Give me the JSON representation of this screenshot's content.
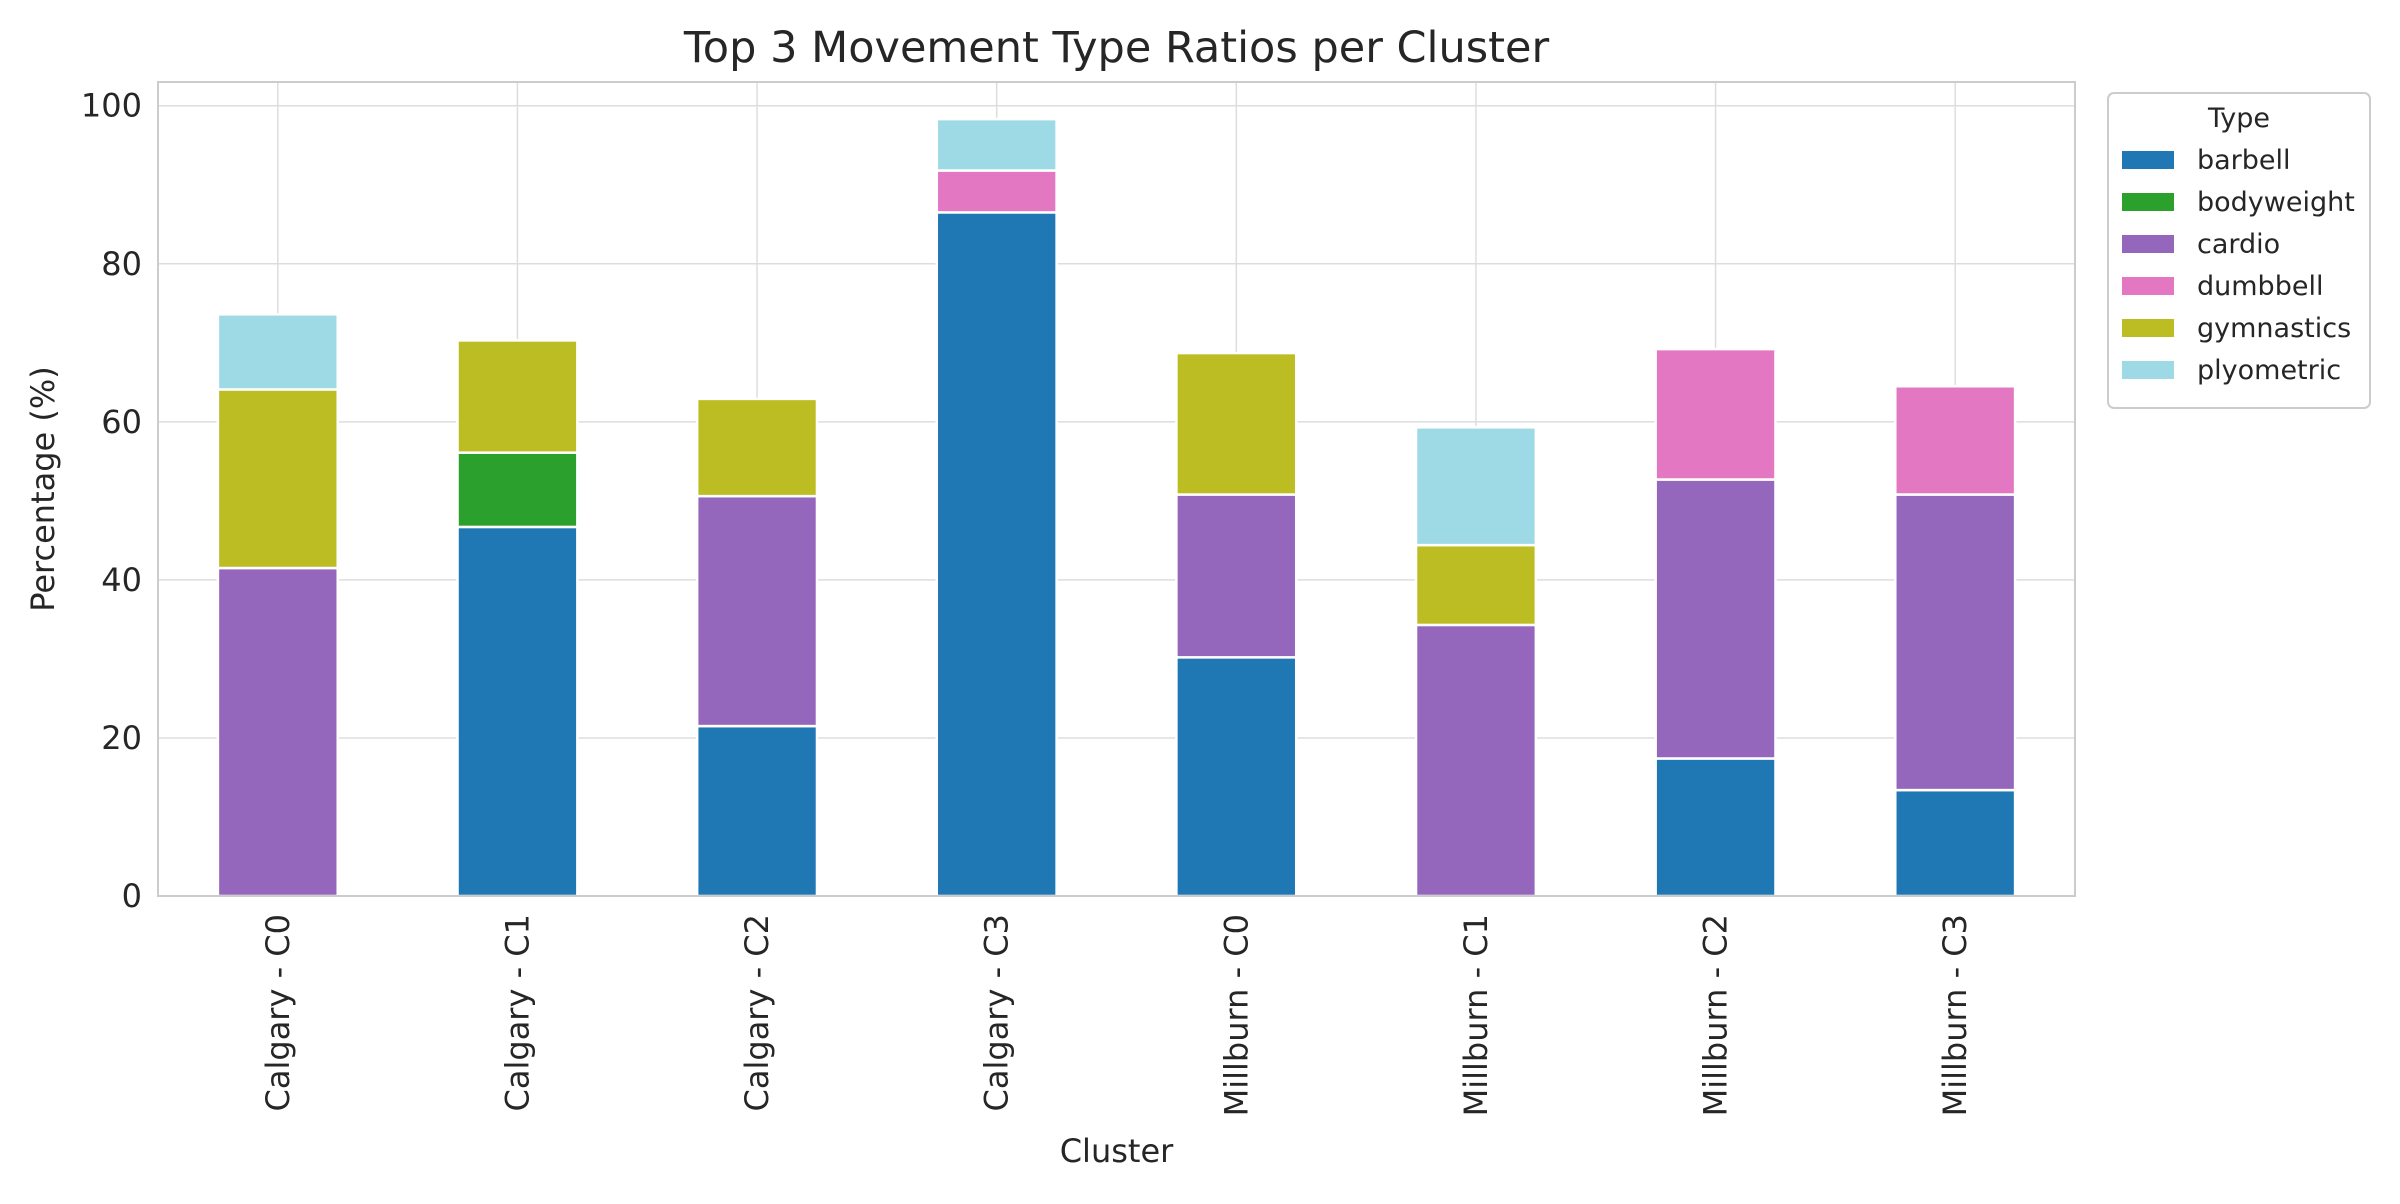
{
  "chart_data": {
    "type": "bar",
    "stacked": true,
    "title": "Top 3 Movement Type Ratios per Cluster",
    "xlabel": "Cluster",
    "ylabel": "Percentage (%)",
    "ylim": [
      0,
      103
    ],
    "yticks": [
      0,
      20,
      40,
      60,
      80,
      100
    ],
    "grid": true,
    "legend_title": "Type",
    "legend_position": "outside-top-right",
    "categories": [
      "Calgary - C0",
      "Calgary - C1",
      "Calgary - C2",
      "Calgary - C3",
      "Millburn - C0",
      "Millburn - C1",
      "Millburn - C2",
      "Millburn - C3"
    ],
    "series": [
      {
        "name": "barbell",
        "color": "#1f77b4",
        "values": [
          0,
          46.7,
          21.5,
          86.5,
          30.2,
          0,
          17.4,
          13.4
        ]
      },
      {
        "name": "bodyweight",
        "color": "#2ca02c",
        "values": [
          0,
          9.4,
          0,
          0,
          0,
          0,
          0,
          0
        ]
      },
      {
        "name": "cardio",
        "color": "#9467bd",
        "values": [
          41.5,
          0,
          29.1,
          0,
          20.6,
          34.3,
          35.3,
          37.4
        ]
      },
      {
        "name": "dumbbell",
        "color": "#e377c2",
        "values": [
          0,
          0,
          0,
          5.3,
          0,
          0,
          16.5,
          13.7
        ]
      },
      {
        "name": "gymnastics",
        "color": "#bcbd22",
        "values": [
          22.6,
          14.2,
          12.3,
          0,
          17.9,
          10.1,
          0,
          0
        ]
      },
      {
        "name": "plyometric",
        "color": "#9edae5",
        "values": [
          9.5,
          0,
          0,
          6.5,
          0,
          14.9,
          0,
          0
        ]
      }
    ]
  }
}
